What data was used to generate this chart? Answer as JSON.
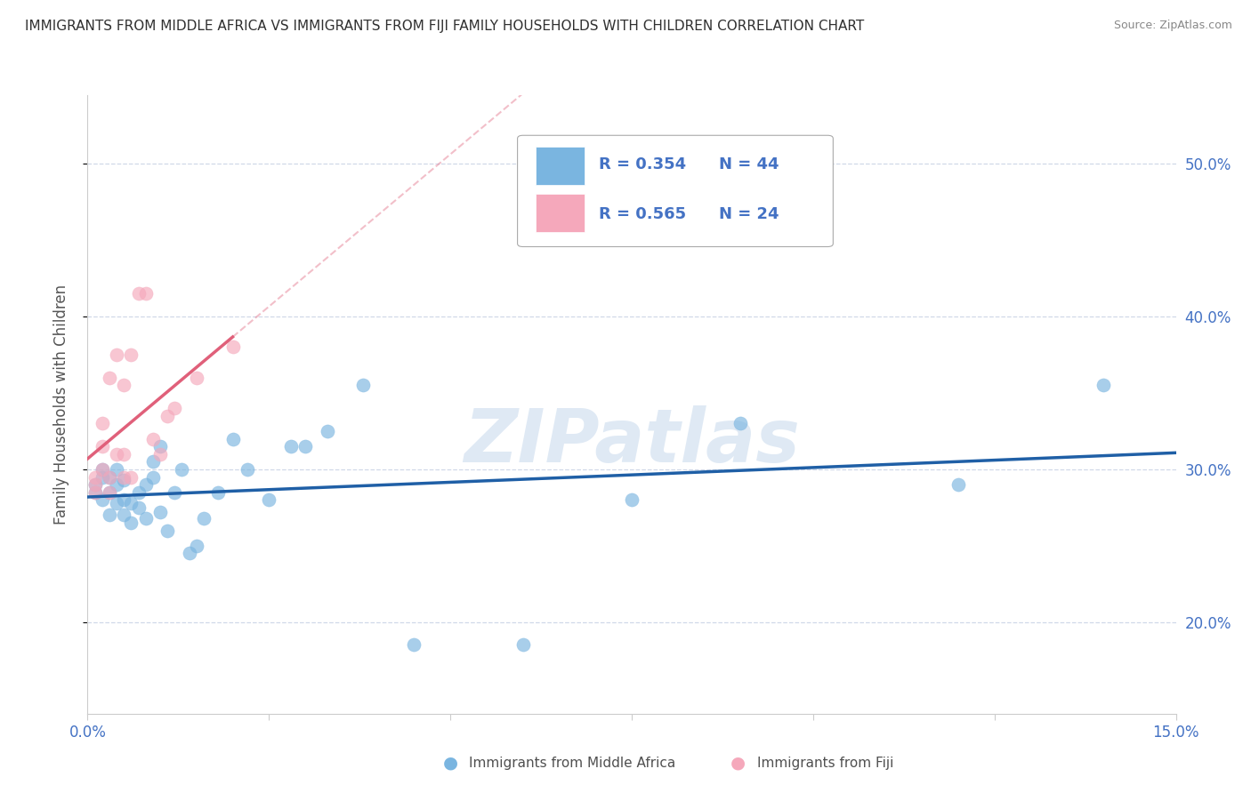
{
  "title": "IMMIGRANTS FROM MIDDLE AFRICA VS IMMIGRANTS FROM FIJI FAMILY HOUSEHOLDS WITH CHILDREN CORRELATION CHART",
  "source": "Source: ZipAtlas.com",
  "ylabel": "Family Households with Children",
  "xlim": [
    0.0,
    0.15
  ],
  "ylim": [
    0.14,
    0.545
  ],
  "yticks": [
    0.2,
    0.3,
    0.4,
    0.5
  ],
  "ytick_labels": [
    "20.0%",
    "30.0%",
    "40.0%",
    "50.0%"
  ],
  "xticks": [
    0.0,
    0.025,
    0.05,
    0.075,
    0.1,
    0.125,
    0.15
  ],
  "xtick_labels": [
    "0.0%",
    "",
    "",
    "",
    "",
    "",
    "15.0%"
  ],
  "blue_R": 0.354,
  "blue_N": 44,
  "pink_R": 0.565,
  "pink_N": 24,
  "blue_color": "#7ab5e0",
  "pink_color": "#f5a8bb",
  "blue_line_color": "#1f5fa6",
  "pink_line_color": "#e0607a",
  "watermark": "ZIPatlas",
  "blue_x": [
    0.001,
    0.001,
    0.002,
    0.002,
    0.002,
    0.003,
    0.003,
    0.003,
    0.004,
    0.004,
    0.004,
    0.005,
    0.005,
    0.005,
    0.006,
    0.006,
    0.007,
    0.007,
    0.008,
    0.008,
    0.009,
    0.009,
    0.01,
    0.01,
    0.011,
    0.012,
    0.013,
    0.014,
    0.015,
    0.016,
    0.018,
    0.02,
    0.022,
    0.025,
    0.028,
    0.03,
    0.033,
    0.038,
    0.045,
    0.06,
    0.075,
    0.09,
    0.12,
    0.14
  ],
  "blue_y": [
    0.285,
    0.29,
    0.28,
    0.295,
    0.3,
    0.27,
    0.285,
    0.295,
    0.278,
    0.29,
    0.3,
    0.27,
    0.28,
    0.293,
    0.265,
    0.278,
    0.275,
    0.285,
    0.268,
    0.29,
    0.295,
    0.305,
    0.315,
    0.272,
    0.26,
    0.285,
    0.3,
    0.245,
    0.25,
    0.268,
    0.285,
    0.32,
    0.3,
    0.28,
    0.315,
    0.315,
    0.325,
    0.355,
    0.185,
    0.185,
    0.28,
    0.33,
    0.29,
    0.355
  ],
  "pink_x": [
    0.001,
    0.001,
    0.001,
    0.002,
    0.002,
    0.002,
    0.003,
    0.003,
    0.003,
    0.004,
    0.004,
    0.005,
    0.005,
    0.005,
    0.006,
    0.006,
    0.007,
    0.008,
    0.009,
    0.01,
    0.011,
    0.012,
    0.015,
    0.02
  ],
  "pink_y": [
    0.285,
    0.29,
    0.295,
    0.3,
    0.315,
    0.33,
    0.285,
    0.295,
    0.36,
    0.31,
    0.375,
    0.355,
    0.295,
    0.31,
    0.295,
    0.375,
    0.415,
    0.415,
    0.32,
    0.31,
    0.335,
    0.34,
    0.36,
    0.38
  ],
  "background_color": "#ffffff",
  "grid_color": "#d0d8e8",
  "title_color": "#303030",
  "axis_color": "#4472c4",
  "legend_R_blue": "R = 0.354",
  "legend_N_blue": "N = 44",
  "legend_R_pink": "R = 0.565",
  "legend_N_pink": "N = 24",
  "bottom_label_blue": "Immigrants from Middle Africa",
  "bottom_label_pink": "Immigrants from Fiji"
}
